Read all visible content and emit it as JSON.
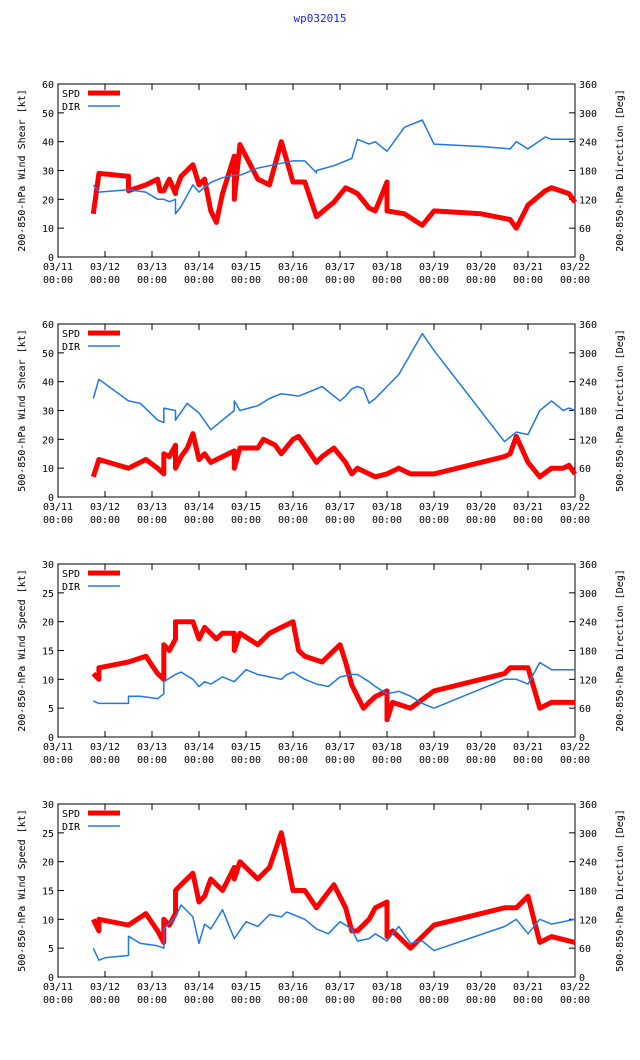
{
  "title": "wp032015",
  "colors": {
    "spd": "#ff0000",
    "dir": "#1e78e6",
    "title": "#2020ff"
  },
  "x_ticks": [
    [
      "03/11",
      "00:00"
    ],
    [
      "03/12",
      "00:00"
    ],
    [
      "03/13",
      "00:00"
    ],
    [
      "03/14",
      "00:00"
    ],
    [
      "03/15",
      "00:00"
    ],
    [
      "03/16",
      "00:00"
    ],
    [
      "03/17",
      "00:00"
    ],
    [
      "03/18",
      "00:00"
    ],
    [
      "03/19",
      "00:00"
    ],
    [
      "03/20",
      "00:00"
    ],
    [
      "03/21",
      "00:00"
    ],
    [
      "03/22",
      "00:00"
    ]
  ],
  "chart_data": [
    {
      "type": "line",
      "ylabel_left": "200-850-hPa Wind Shear [kt]",
      "ylabel_right": "200-850-hPa Direction [Deg]",
      "xlim": [
        0,
        11
      ],
      "ylim_left": [
        0,
        60
      ],
      "ylim_right": [
        0,
        360
      ],
      "yticks_left": [
        0,
        10,
        20,
        30,
        40,
        50,
        60
      ],
      "yticks_right": [
        0,
        60,
        120,
        180,
        240,
        300,
        360
      ],
      "legend": [
        "SPD",
        "DIR"
      ],
      "series": [
        {
          "name": "SPD",
          "axis": "left",
          "x": [
            0.75,
            0.87,
            1.5,
            1.5,
            1.87,
            2.12,
            2.17,
            2.25,
            2.37,
            2.5,
            2.5,
            2.62,
            2.87,
            3.0,
            3.12,
            3.25,
            3.37,
            3.5,
            3.75,
            3.75,
            3.87,
            4.25,
            4.5,
            4.75,
            5.0,
            5.0,
            5.25,
            5.5,
            5.87,
            6.12,
            6.25,
            6.37,
            6.62,
            6.75,
            7.0,
            7.0,
            7.37,
            7.75,
            8.0,
            9.0,
            9.62,
            9.75,
            10.0,
            10.37,
            10.5,
            10.87,
            11.0
          ],
          "y": [
            15,
            29,
            28,
            23,
            25,
            27,
            23,
            23,
            27,
            22,
            23,
            28,
            32,
            25,
            27,
            16,
            12,
            22,
            35,
            20,
            39,
            27,
            25,
            40,
            26,
            26,
            26,
            14,
            19,
            24,
            23,
            22,
            17,
            16,
            26,
            16,
            15,
            11,
            16,
            15,
            13,
            10,
            18,
            23,
            24,
            22,
            19
          ]
        },
        {
          "name": "DIR",
          "axis": "right",
          "x": [
            0.75,
            0.87,
            1.5,
            1.87,
            2.12,
            2.25,
            2.37,
            2.5,
            2.5,
            2.62,
            2.87,
            3.0,
            3.12,
            3.25,
            3.37,
            3.5,
            3.75,
            3.87,
            4.25,
            4.5,
            4.75,
            5.0,
            5.25,
            5.5,
            5.5,
            5.87,
            6.12,
            6.25,
            6.37,
            6.62,
            6.75,
            7.0,
            7.0,
            7.37,
            7.75,
            8.0,
            9.0,
            9.62,
            9.75,
            10.0,
            10.37,
            10.5,
            10.87,
            11.0
          ],
          "y": [
            150,
            135,
            140,
            135,
            120,
            120,
            115,
            120,
            90,
            105,
            150,
            135,
            145,
            155,
            160,
            165,
            170,
            170,
            185,
            190,
            195,
            200,
            200,
            175,
            180,
            190,
            200,
            205,
            245,
            235,
            240,
            220,
            220,
            270,
            285,
            235,
            230,
            225,
            240,
            225,
            250,
            245,
            245,
            245
          ]
        }
      ]
    },
    {
      "type": "line",
      "ylabel_left": "500-850-hPa Wind Shear [kt]",
      "ylabel_right": "500-850-hPa Direction [Deg]",
      "xlim": [
        0,
        11
      ],
      "ylim_left": [
        0,
        60
      ],
      "ylim_right": [
        0,
        360
      ],
      "yticks_left": [
        0,
        10,
        20,
        30,
        40,
        50,
        60
      ],
      "yticks_right": [
        0,
        60,
        120,
        180,
        240,
        300,
        360
      ],
      "legend": [
        "SPD",
        "DIR"
      ],
      "series": [
        {
          "name": "SPD",
          "axis": "left",
          "x": [
            0.75,
            0.87,
            1.5,
            1.87,
            2.12,
            2.25,
            2.25,
            2.37,
            2.5,
            2.5,
            2.62,
            2.75,
            2.87,
            3.0,
            3.12,
            3.25,
            3.5,
            3.75,
            3.75,
            3.87,
            4.25,
            4.37,
            4.62,
            4.75,
            5.0,
            5.12,
            5.25,
            5.5,
            5.62,
            5.87,
            6.12,
            6.25,
            6.37,
            6.62,
            6.75,
            7.0,
            7.25,
            7.5,
            8.0,
            8.0,
            9.5,
            9.62,
            9.75,
            10.0,
            10.25,
            10.5,
            10.75,
            10.87,
            11.0
          ],
          "y": [
            7,
            13,
            10,
            13,
            10,
            8,
            15,
            14,
            18,
            10,
            14,
            17,
            22,
            13,
            15,
            12,
            14,
            16,
            10,
            17,
            17,
            20,
            18,
            15,
            20,
            21,
            18,
            12,
            14,
            17,
            12,
            8,
            10,
            8,
            7,
            8,
            10,
            8,
            8,
            8,
            14,
            15,
            21,
            12,
            7,
            10,
            10,
            11,
            8
          ]
        },
        {
          "name": "DIR",
          "axis": "right",
          "x": [
            0.75,
            0.87,
            1.5,
            1.75,
            2.12,
            2.25,
            2.25,
            2.5,
            2.5,
            2.75,
            2.87,
            3.0,
            3.25,
            3.75,
            3.75,
            3.87,
            4.25,
            4.5,
            4.75,
            5.12,
            5.25,
            5.62,
            6.0,
            6.12,
            6.25,
            6.37,
            6.5,
            6.62,
            6.75,
            7.0,
            7.25,
            7.75,
            8.0,
            9.5,
            9.75,
            10.0,
            10.25,
            10.5,
            10.75,
            10.87,
            11.0
          ],
          "y": [
            205,
            245,
            200,
            195,
            160,
            155,
            185,
            180,
            160,
            195,
            185,
            175,
            140,
            180,
            200,
            180,
            190,
            205,
            215,
            210,
            215,
            230,
            200,
            210,
            225,
            230,
            225,
            195,
            205,
            230,
            255,
            340,
            305,
            115,
            135,
            130,
            180,
            200,
            180,
            185,
            180
          ]
        }
      ]
    },
    {
      "type": "line",
      "ylabel_left": "200-850-hPa Wind Speed [kt]",
      "ylabel_right": "200-850-hPa Direction [Deg]",
      "xlim": [
        0,
        11
      ],
      "ylim_left": [
        0,
        30
      ],
      "ylim_right": [
        0,
        360
      ],
      "yticks_left": [
        0,
        5,
        10,
        15,
        20,
        25,
        30
      ],
      "yticks_right": [
        0,
        60,
        120,
        180,
        240,
        300,
        360
      ],
      "legend": [
        "SPD",
        "DIR"
      ],
      "series": [
        {
          "name": "SPD",
          "axis": "left",
          "x": [
            0.75,
            0.87,
            0.87,
            1.5,
            1.87,
            2.12,
            2.25,
            2.25,
            2.37,
            2.5,
            2.5,
            2.62,
            2.87,
            3.0,
            3.12,
            3.37,
            3.5,
            3.75,
            3.75,
            3.87,
            4.25,
            4.5,
            4.75,
            5.0,
            5.12,
            5.25,
            5.62,
            6.0,
            6.12,
            6.25,
            6.5,
            6.62,
            6.75,
            7.0,
            7.0,
            7.12,
            7.5,
            8.0,
            9.5,
            9.62,
            9.75,
            10.0,
            10.25,
            10.5,
            11.0
          ],
          "y": [
            11,
            10,
            12,
            13,
            14,
            11,
            10,
            16,
            15,
            17,
            20,
            20,
            20,
            17,
            19,
            17,
            18,
            18,
            15,
            18,
            16,
            18,
            19,
            20,
            15,
            14,
            13,
            16,
            13,
            9,
            5,
            6,
            7,
            8,
            3,
            6,
            5,
            8,
            11,
            12,
            12,
            12,
            5,
            6,
            6
          ]
        },
        {
          "name": "DIR",
          "axis": "right",
          "x": [
            0.75,
            0.87,
            1.0,
            1.5,
            1.5,
            1.75,
            2.12,
            2.25,
            2.25,
            2.5,
            2.62,
            2.87,
            3.0,
            3.12,
            3.25,
            3.5,
            3.75,
            4.0,
            4.25,
            4.5,
            4.75,
            4.87,
            5.0,
            5.25,
            5.5,
            5.75,
            6.0,
            6.25,
            6.37,
            6.62,
            6.75,
            7.0,
            7.25,
            7.5,
            7.75,
            8.0,
            9.5,
            9.75,
            10.0,
            10.25,
            10.5,
            11.0
          ],
          "y": [
            75,
            70,
            70,
            70,
            85,
            85,
            80,
            90,
            115,
            130,
            135,
            120,
            105,
            115,
            110,
            125,
            115,
            140,
            130,
            125,
            120,
            130,
            135,
            120,
            110,
            105,
            125,
            130,
            130,
            115,
            105,
            90,
            95,
            85,
            70,
            60,
            120,
            120,
            110,
            155,
            140,
            140
          ]
        }
      ]
    },
    {
      "type": "line",
      "ylabel_left": "500-850-hPa Wind Speed [kt]",
      "ylabel_right": "500-850-hPa Direction [Deg]",
      "xlim": [
        0,
        11
      ],
      "ylim_left": [
        0,
        30
      ],
      "ylim_right": [
        0,
        360
      ],
      "yticks_left": [
        0,
        5,
        10,
        15,
        20,
        25,
        30
      ],
      "yticks_right": [
        0,
        60,
        120,
        180,
        240,
        300,
        360
      ],
      "legend": [
        "SPD",
        "DIR"
      ],
      "series": [
        {
          "name": "SPD",
          "axis": "left",
          "x": [
            0.75,
            0.87,
            0.87,
            1.5,
            1.87,
            2.12,
            2.25,
            2.25,
            2.37,
            2.5,
            2.5,
            2.62,
            2.87,
            3.0,
            3.12,
            3.25,
            3.5,
            3.75,
            3.75,
            3.87,
            4.25,
            4.5,
            4.75,
            5.0,
            5.12,
            5.25,
            5.5,
            5.87,
            6.12,
            6.25,
            6.37,
            6.62,
            6.75,
            7.0,
            7.0,
            7.12,
            7.5,
            8.0,
            9.5,
            9.62,
            9.75,
            10.0,
            10.25,
            10.5,
            11.0
          ],
          "y": [
            10,
            8,
            10,
            9,
            11,
            8,
            6,
            10,
            9,
            11,
            15,
            16,
            18,
            13,
            14,
            17,
            15,
            19,
            17,
            20,
            17,
            19,
            25,
            15,
            15,
            15,
            12,
            16,
            12,
            8,
            8,
            10,
            12,
            13,
            7,
            8,
            5,
            9,
            12,
            12,
            12,
            14,
            6,
            7,
            6
          ]
        },
        {
          "name": "DIR",
          "axis": "right",
          "x": [
            0.75,
            0.87,
            1.0,
            1.5,
            1.5,
            1.75,
            2.12,
            2.25,
            2.25,
            2.5,
            2.62,
            2.87,
            3.0,
            3.12,
            3.25,
            3.5,
            3.75,
            4.0,
            4.25,
            4.5,
            4.75,
            4.87,
            5.0,
            5.25,
            5.5,
            5.75,
            6.0,
            6.25,
            6.37,
            6.62,
            6.75,
            7.0,
            7.25,
            7.5,
            7.75,
            8.0,
            9.5,
            9.75,
            10.0,
            10.25,
            10.5,
            11.0
          ],
          "y": [
            60,
            35,
            40,
            45,
            85,
            70,
            65,
            60,
            100,
            125,
            150,
            125,
            70,
            110,
            100,
            140,
            80,
            115,
            105,
            130,
            125,
            135,
            130,
            120,
            100,
            90,
            115,
            100,
            75,
            80,
            90,
            75,
            105,
            70,
            75,
            55,
            105,
            120,
            90,
            120,
            110,
            120
          ]
        }
      ]
    }
  ]
}
